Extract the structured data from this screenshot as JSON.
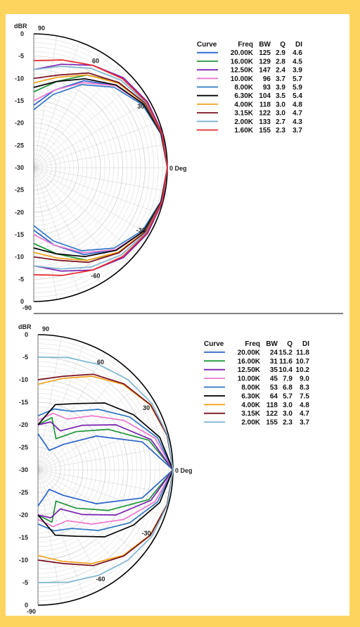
{
  "colors": {
    "background": "#fcd45e",
    "panel": "#ffffff",
    "series_palette": [
      "#2a62c9",
      "#1e9638",
      "#7a1fb0",
      "#ee77cf",
      "#2f78c4",
      "#000000",
      "#f2a21c",
      "#7a1020",
      "#7eb6d0",
      "#e8282b"
    ]
  },
  "chart_data": [
    {
      "type": "polar-line",
      "ylabel": "dBR",
      "radial_ticks_upper": [
        "0",
        "-5",
        "-10",
        "-15",
        "-20",
        "-25",
        "-30"
      ],
      "radial_ticks_lower": [
        "-25",
        "-20",
        "-15",
        "-10",
        "-5",
        "0"
      ],
      "angle_labels": [
        "90",
        "60",
        "30",
        "0 Deg",
        "-30",
        "-60",
        "-90"
      ],
      "angle_label_values": [
        90,
        60,
        30,
        0,
        -30,
        -60,
        -90
      ],
      "rlim": [
        -30,
        0
      ],
      "grid": true,
      "legend": {
        "position": "right",
        "headers": [
          "Curve",
          "Freq",
          "BW",
          "Q",
          "DI"
        ]
      },
      "series": [
        {
          "name": "20.00K",
          "bw": "125",
          "q": "2.9",
          "di": "4.6",
          "color": "#2a62c9",
          "angles": [
            90,
            75,
            60,
            45,
            30,
            15,
            0
          ],
          "values": [
            -16,
            -12,
            -7.5,
            -4,
            -1.5,
            -0.4,
            0
          ]
        },
        {
          "name": "16.00K",
          "bw": "129",
          "q": "2.8",
          "di": "4.5",
          "color": "#1e9638",
          "angles": [
            90,
            75,
            60,
            45,
            30,
            15,
            0
          ],
          "values": [
            -13,
            -10,
            -6,
            -3,
            -1.2,
            -0.3,
            0
          ]
        },
        {
          "name": "12.50K",
          "bw": "147",
          "q": "2.4",
          "di": "3.9",
          "color": "#7a1fb0",
          "angles": [
            90,
            75,
            60,
            45,
            30,
            15,
            0
          ],
          "values": [
            -8,
            -6,
            -3.5,
            -1.5,
            -0.5,
            -0.1,
            0
          ]
        },
        {
          "name": "10.00K",
          "bw": "96",
          "q": "3.7",
          "di": "5.7",
          "color": "#ee77cf",
          "angles": [
            90,
            75,
            60,
            45,
            30,
            15,
            0
          ],
          "values": [
            -15,
            -12,
            -8,
            -4,
            -1.5,
            -0.4,
            0
          ]
        },
        {
          "name": "8.00K",
          "bw": "93",
          "q": "3.9",
          "di": "5.9",
          "color": "#2f78c4",
          "angles": [
            90,
            75,
            60,
            45,
            30,
            15,
            0
          ],
          "values": [
            -17,
            -13,
            -8.5,
            -4.5,
            -1.8,
            -0.5,
            0
          ]
        },
        {
          "name": "6.30K",
          "bw": "104",
          "q": "3.5",
          "di": "5.4",
          "color": "#000000",
          "angles": [
            90,
            75,
            60,
            45,
            30,
            15,
            0
          ],
          "values": [
            -12,
            -10,
            -7,
            -3.8,
            -1.5,
            -0.4,
            0
          ]
        },
        {
          "name": "4.00K",
          "bw": "118",
          "q": "3.0",
          "di": "4.8",
          "color": "#f2a21c",
          "angles": [
            90,
            75,
            60,
            45,
            30,
            15,
            0
          ],
          "values": [
            -11,
            -9,
            -6,
            -3.2,
            -1.2,
            -0.3,
            0
          ]
        },
        {
          "name": "3.15K",
          "bw": "122",
          "q": "3.0",
          "di": "4.7",
          "color": "#7a1020",
          "angles": [
            90,
            75,
            60,
            45,
            30,
            15,
            0
          ],
          "values": [
            -10,
            -8.5,
            -5.5,
            -3,
            -1.1,
            -0.3,
            0
          ]
        },
        {
          "name": "2.00K",
          "bw": "133",
          "q": "2.7",
          "di": "4.3",
          "color": "#7eb6d0",
          "angles": [
            90,
            75,
            60,
            45,
            30,
            15,
            0
          ],
          "values": [
            -8,
            -6.5,
            -4.3,
            -2.3,
            -0.9,
            -0.2,
            0
          ]
        },
        {
          "name": "1.60K",
          "bw": "155",
          "q": "2.3",
          "di": "3.7",
          "color": "#e8282b",
          "angles": [
            90,
            75,
            60,
            45,
            30,
            15,
            0
          ],
          "values": [
            -6,
            -5,
            -3.5,
            -1.8,
            -0.7,
            -0.2,
            0
          ]
        }
      ]
    },
    {
      "type": "polar-line",
      "ylabel": "dBR",
      "radial_ticks_upper": [
        "0",
        "-5",
        "-10",
        "-15",
        "-20",
        "-25",
        "-30"
      ],
      "radial_ticks_lower": [
        "-25",
        "-20",
        "-15",
        "-10",
        "-5",
        "0"
      ],
      "angle_labels": [
        "90",
        "60",
        "30",
        "0 Deg",
        "-30",
        "-60",
        "-90"
      ],
      "angle_label_values": [
        90,
        60,
        30,
        0,
        -30,
        -60,
        -90
      ],
      "rlim": [
        -30,
        0
      ],
      "grid": true,
      "legend": {
        "position": "right",
        "headers": [
          "Curve",
          "Freq",
          "BW",
          "Q",
          "DI"
        ]
      },
      "series": [
        {
          "name": "20.00K",
          "bw": "24",
          "q": "15.2",
          "di": "11.8",
          "color": "#2a62c9",
          "angles": [
            90,
            75,
            60,
            45,
            30,
            15,
            0
          ],
          "values": [
            -22,
            -24,
            -25,
            -22,
            -15,
            -6,
            0
          ]
        },
        {
          "name": "16.00K",
          "bw": "31",
          "q": "11.6",
          "di": "10.7",
          "color": "#1e9638",
          "angles": [
            90,
            75,
            60,
            45,
            30,
            15,
            0
          ],
          "values": [
            -20,
            -18,
            -22,
            -18,
            -12,
            -4.5,
            0
          ]
        },
        {
          "name": "12.50K",
          "bw": "35",
          "q": "10.4",
          "di": "10.2",
          "color": "#7a1fb0",
          "angles": [
            90,
            75,
            60,
            45,
            30,
            15,
            0
          ],
          "values": [
            -20,
            -19,
            -20,
            -16,
            -10,
            -4,
            0
          ]
        },
        {
          "name": "10.00K",
          "bw": "45",
          "q": "7.9",
          "di": "9.0",
          "color": "#ee77cf",
          "angles": [
            90,
            75,
            60,
            45,
            30,
            15,
            0
          ],
          "values": [
            -19,
            -17,
            -17,
            -13,
            -8,
            -3,
            0
          ]
        },
        {
          "name": "8.00K",
          "bw": "53",
          "q": "6.8",
          "di": "8.3",
          "color": "#2f78c4",
          "angles": [
            90,
            75,
            60,
            45,
            30,
            15,
            0
          ],
          "values": [
            -18,
            -16,
            -15,
            -11,
            -6.5,
            -2.5,
            0
          ]
        },
        {
          "name": "6.30K",
          "bw": "64",
          "q": "5.7",
          "di": "7.5",
          "color": "#000000",
          "angles": [
            90,
            75,
            60,
            45,
            30,
            15,
            0
          ],
          "values": [
            -20,
            -15,
            -13,
            -9,
            -5.5,
            -2,
            0
          ]
        },
        {
          "name": "4.00K",
          "bw": "118",
          "q": "3.0",
          "di": "4.8",
          "color": "#f2a21c",
          "angles": [
            90,
            75,
            60,
            45,
            30,
            15,
            0
          ],
          "values": [
            -11,
            -9,
            -6,
            -3.2,
            -1.2,
            -0.3,
            0
          ]
        },
        {
          "name": "3.15K",
          "bw": "122",
          "q": "3.0",
          "di": "4.7",
          "color": "#7a1020",
          "angles": [
            90,
            75,
            60,
            45,
            30,
            15,
            0
          ],
          "values": [
            -10,
            -8.5,
            -5.5,
            -3,
            -1.1,
            -0.3,
            0
          ]
        },
        {
          "name": "2.00K",
          "bw": "155",
          "q": "2.3",
          "di": "3.7",
          "color": "#7eb6d0",
          "angles": [
            90,
            75,
            60,
            45,
            30,
            15,
            0
          ],
          "values": [
            -5,
            -4.2,
            -3,
            -1.7,
            -0.7,
            -0.2,
            0
          ]
        }
      ]
    }
  ]
}
